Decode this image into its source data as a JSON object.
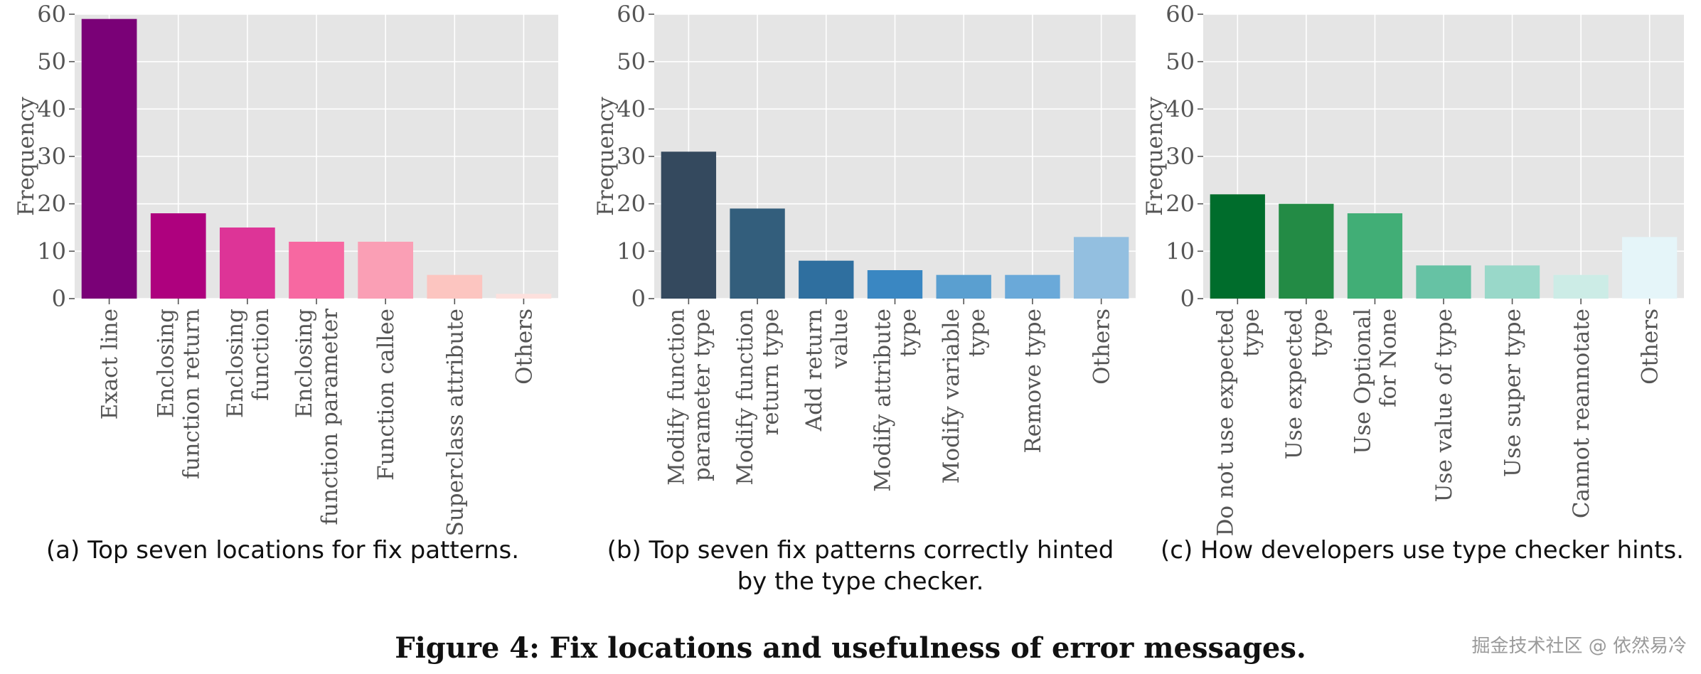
{
  "figure": {
    "title": "Figure 4: Fix locations and usefulness of error messages.",
    "watermark": "掘金技术社区 @ 依然易冷"
  },
  "colors": {
    "panel_bg": "#e5e5e5",
    "grid": "#ffffff",
    "tick_text": "#555555"
  },
  "chart_data": [
    {
      "type": "bar",
      "caption": "(a) Top seven locations for fix patterns.",
      "ylabel": "Frequency",
      "ylim": [
        0,
        60
      ],
      "yticks": [
        0,
        10,
        20,
        30,
        40,
        50,
        60
      ],
      "grid": true,
      "categories": [
        [
          "Exact line"
        ],
        [
          "Enclosing",
          "function return"
        ],
        [
          "Enclosing",
          "function"
        ],
        [
          "Enclosing",
          "function parameter"
        ],
        [
          "Function callee"
        ],
        [
          "Superclass attribute"
        ],
        [
          "Others"
        ]
      ],
      "values": [
        59,
        18,
        15,
        12,
        12,
        5,
        1
      ],
      "colors": [
        "#7a0177",
        "#ae017e",
        "#dd3497",
        "#f768a1",
        "#fa9fb5",
        "#fcc5c0",
        "#fde0dd"
      ]
    },
    {
      "type": "bar",
      "caption": "(b) Top seven fix patterns correctly hinted by the type checker.",
      "ylabel": "Frequency",
      "ylim": [
        0,
        60
      ],
      "yticks": [
        0,
        10,
        20,
        30,
        40,
        50,
        60
      ],
      "grid": true,
      "categories": [
        [
          "Modify function",
          "parameter type"
        ],
        [
          "Modify function",
          "return type"
        ],
        [
          "Add return",
          "value"
        ],
        [
          "Modify attribute",
          "type"
        ],
        [
          "Modify variable",
          "type"
        ],
        [
          "Remove type"
        ],
        [
          "Others"
        ]
      ],
      "values": [
        31,
        19,
        8,
        6,
        5,
        5,
        13
      ],
      "colors": [
        "#34495e",
        "#335e7c",
        "#2f6f9f",
        "#3a87c2",
        "#5a9fd0",
        "#6aa9d9",
        "#93bfe0"
      ]
    },
    {
      "type": "bar",
      "caption": "(c) How developers use type checker hints.",
      "ylabel": "Frequency",
      "ylim": [
        0,
        60
      ],
      "yticks": [
        0,
        10,
        20,
        30,
        40,
        50,
        60
      ],
      "grid": true,
      "categories": [
        [
          "Do not use expected",
          "type"
        ],
        [
          "Use expected",
          "type"
        ],
        [
          "Use Optional",
          "for None"
        ],
        [
          "Use value of type"
        ],
        [
          "Use super type"
        ],
        [
          "Cannot reannotate"
        ],
        [
          "Others"
        ]
      ],
      "values": [
        22,
        20,
        18,
        7,
        7,
        5,
        13
      ],
      "colors": [
        "#006d2c",
        "#238b45",
        "#41ae76",
        "#66c2a4",
        "#99d8c9",
        "#ccece6",
        "#e5f5f9"
      ]
    }
  ]
}
